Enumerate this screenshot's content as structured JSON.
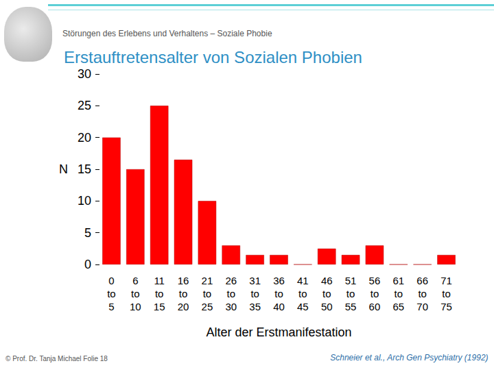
{
  "header": "Störungen des Erlebens und Verhaltens – Soziale Phobie",
  "footer": "© Prof. Dr. Tanja Michael Folie 18",
  "source": "Schneier et al., Arch Gen Psychiatry (1992)",
  "chart_data": {
    "type": "bar",
    "title": "Erstauftretensalter von Sozialen Phobien",
    "x_label": "Alter der Erstmanifestation",
    "y_label": "N",
    "categories": [
      "0 to 5",
      "6 to 10",
      "11 to 15",
      "16 to 20",
      "21 to 25",
      "26 to 30",
      "31 to 35",
      "36 to 40",
      "41 to 45",
      "46 to 50",
      "51 to 55",
      "56 to 60",
      "61 to 65",
      "66 to 70",
      "71 to 75"
    ],
    "values": [
      20,
      15,
      25,
      16.5,
      10,
      3,
      1.5,
      1.5,
      0,
      2.5,
      1.5,
      3,
      0,
      0,
      1.5
    ],
    "color": "#ff0000",
    "ylim": [
      0,
      30
    ],
    "yticks": [
      0,
      5,
      10,
      15,
      20,
      25,
      30
    ],
    "grid": false
  }
}
